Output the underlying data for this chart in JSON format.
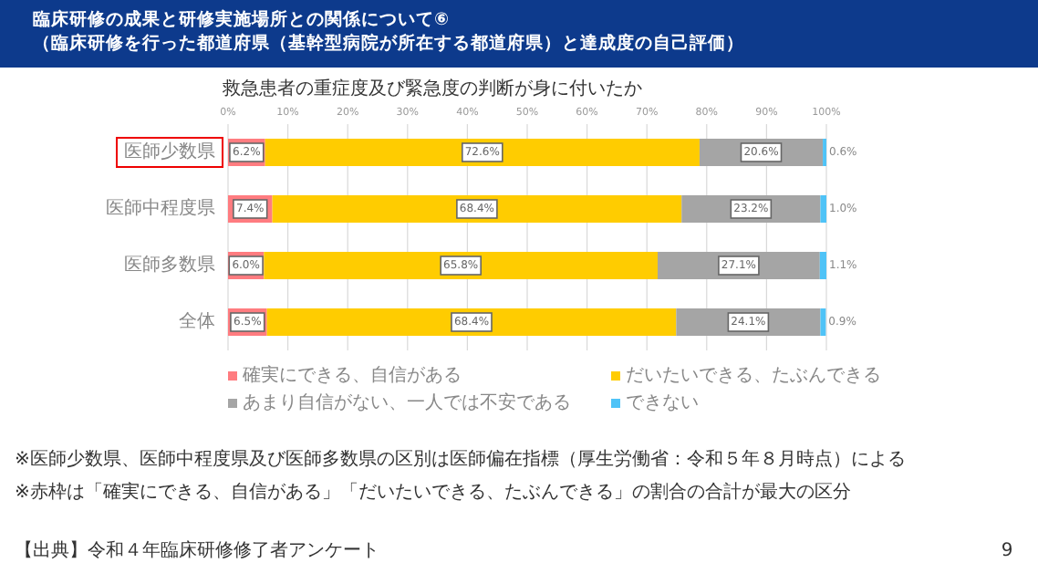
{
  "chart_data": {
    "type": "bar",
    "orientation": "horizontal",
    "stacked": true,
    "title": "臨床研修の成果と研修実施場所との関係について⑥",
    "subtitle": "（臨床研修を行った都道府県（基幹型病院が所在する都道府県）と達成度の自己評価）",
    "xlabel": "救急患者の重症度及び緊急度の判断が身に付いたか",
    "categories": [
      "医師少数県",
      "医師中程度県",
      "医師多数県",
      "全体"
    ],
    "series": [
      {
        "name": "確実にできる、自信がある",
        "color": "#ff7c80",
        "values": [
          6.2,
          7.4,
          6.0,
          6.5
        ],
        "value_labels": [
          "6.2%",
          "7.4%",
          "6.0%",
          "6.5%"
        ]
      },
      {
        "name": "だいたいできる、たぶんできる",
        "color": "#ffcc00",
        "values": [
          72.6,
          68.4,
          65.8,
          68.4
        ],
        "value_labels": [
          "72.6%",
          "68.4%",
          "65.8%",
          "68.4%"
        ]
      },
      {
        "name": "あまり自信がない、一人では不安である",
        "color": "#a5a5a5",
        "values": [
          20.6,
          23.2,
          27.1,
          24.1
        ],
        "value_labels": [
          "20.6%",
          "23.2%",
          "27.1%",
          "24.1%"
        ]
      },
      {
        "name": "できない",
        "color": "#4fc3f7",
        "values": [
          0.6,
          1.0,
          1.1,
          0.9
        ],
        "value_labels": [
          "0.6%",
          "1.0%",
          "1.1%",
          "0.9%"
        ]
      }
    ],
    "xlim": [
      0,
      100
    ],
    "xticks": [
      {
        "value": 0,
        "label": "0%"
      },
      {
        "value": 10,
        "label": "10%"
      },
      {
        "value": 20,
        "label": "20%"
      },
      {
        "value": 30,
        "label": "30%"
      },
      {
        "value": 40,
        "label": "40%"
      },
      {
        "value": 50,
        "label": "50%"
      },
      {
        "value": 60,
        "label": "60%"
      },
      {
        "value": 70,
        "label": "70%"
      },
      {
        "value": 80,
        "label": "80%"
      },
      {
        "value": 90,
        "label": "90%"
      },
      {
        "value": 100,
        "label": "100%"
      }
    ],
    "grid": "x",
    "legend": "bottom",
    "annotations": [
      "【出典】令和４年臨床研修修了者アンケート",
      "※医師少数県、医師中程度県及び医師多数県の区別は医師偏在指標（厚生労働省：令和５年８月時点）による",
      "※赤枠は「確実にできる、自信がある」「だいたいできる、たぶんできる」の割合の合計が最大の区分",
      "9"
    ]
  }
}
